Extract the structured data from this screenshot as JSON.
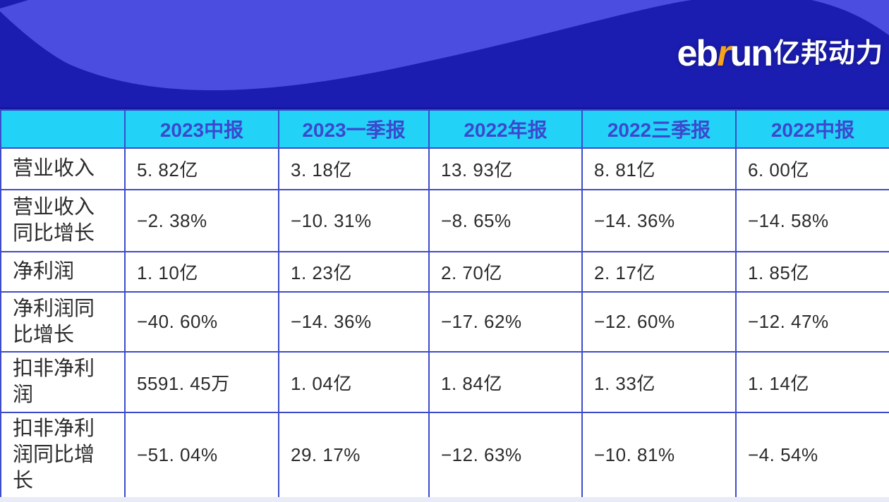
{
  "colors": {
    "page_bg": "#FFFFFF",
    "banner_base": "#1B1DB0",
    "banner_wave": "#4A4DE0",
    "banner_edge": "#1517A0",
    "header_bg": "#22D3F7",
    "header_text": "#3C48CE",
    "table_border": "#3D4BCB",
    "cell_text": "#2B2B2B",
    "label_text": "#2B2B2B",
    "logo_text": "#FFFFFF",
    "logo_accent": "#F7A41D",
    "footer_strip": "#E9EBF7"
  },
  "brand": {
    "logo_prefix": "eb",
    "logo_accent_letter": "r",
    "logo_suffix": "un",
    "logo_cn": "亿邦动力"
  },
  "table": {
    "columns": [
      "",
      "2023中报",
      "2023一季报",
      "2022年报",
      "2022三季报",
      "2022中报"
    ],
    "rows": [
      {
        "label": "营业收入",
        "values": [
          "5. 82亿",
          "3. 18亿",
          "13. 93亿",
          "8. 81亿",
          "6. 00亿"
        ]
      },
      {
        "label": "营业收入同比增长",
        "values": [
          "−2. 38%",
          "−10. 31%",
          "−8. 65%",
          "−14. 36%",
          "−14. 58%"
        ]
      },
      {
        "label": "净利润",
        "values": [
          "1. 10亿",
          "1. 23亿",
          "2. 70亿",
          "2. 17亿",
          "1. 85亿"
        ]
      },
      {
        "label": "净利润同比增长",
        "values": [
          "−40. 60%",
          "−14. 36%",
          "−17. 62%",
          "−12. 60%",
          "−12. 47%"
        ]
      },
      {
        "label": "扣非净利润",
        "values": [
          "5591. 45万",
          "1. 04亿",
          "1. 84亿",
          "1. 33亿",
          "1. 14亿"
        ]
      },
      {
        "label": "扣非净利润同比增长",
        "values": [
          "−51. 04%",
          "29. 17%",
          "−12. 63%",
          "−10. 81%",
          "−4. 54%"
        ]
      }
    ]
  },
  "chart_data": {
    "type": "table",
    "categories": [
      "2023中报",
      "2023一季报",
      "2022年报",
      "2022三季报",
      "2022中报"
    ],
    "series": [
      {
        "name": "营业收入",
        "values": [
          "5.82亿",
          "3.18亿",
          "13.93亿",
          "8.81亿",
          "6.00亿"
        ]
      },
      {
        "name": "营业收入同比增长",
        "values": [
          "-2.38%",
          "-10.31%",
          "-8.65%",
          "-14.36%",
          "-14.58%"
        ]
      },
      {
        "name": "净利润",
        "values": [
          "1.10亿",
          "1.23亿",
          "2.70亿",
          "2.17亿",
          "1.85亿"
        ]
      },
      {
        "name": "净利润同比增长",
        "values": [
          "-40.60%",
          "-14.36%",
          "-17.62%",
          "-12.60%",
          "-12.47%"
        ]
      },
      {
        "name": "扣非净利润",
        "values": [
          "5591.45万",
          "1.04亿",
          "1.84亿",
          "1.33亿",
          "1.14亿"
        ]
      },
      {
        "name": "扣非净利润同比增长",
        "values": [
          "-51.04%",
          "29.17%",
          "-12.63%",
          "-10.81%",
          "-4.54%"
        ]
      }
    ],
    "legend_position": "none",
    "grid": true
  }
}
